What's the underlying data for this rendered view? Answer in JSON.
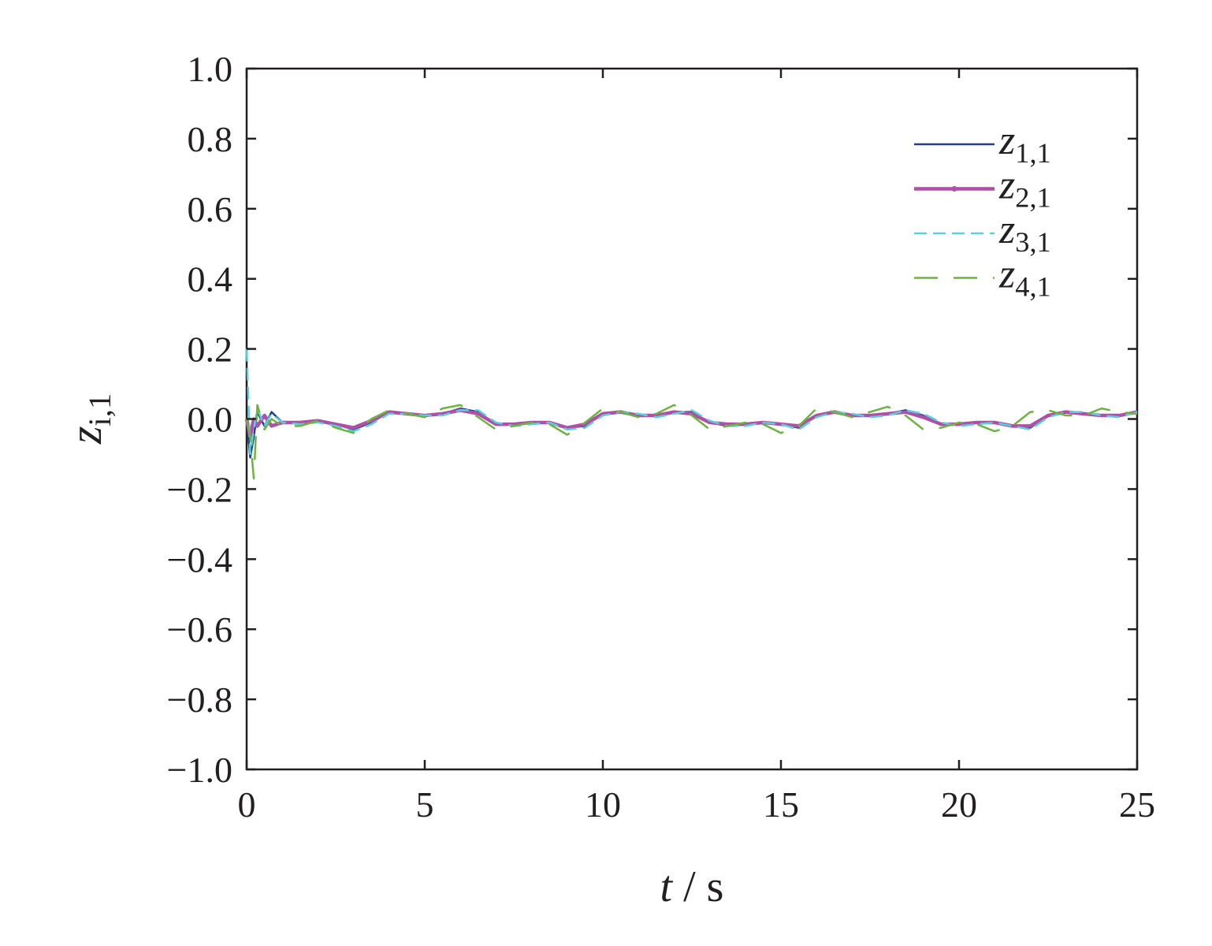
{
  "chart_data": {
    "type": "line",
    "x_label": "t / s",
    "y_label": "zi,1",
    "xlim": [
      0,
      25
    ],
    "ylim": [
      -1,
      1
    ],
    "xticks": [
      0,
      5,
      10,
      15,
      20,
      25
    ],
    "yticks": [
      {
        "value": -1,
        "label": "−1.0"
      },
      {
        "value": -0.8,
        "label": "−0.8"
      },
      {
        "value": -0.6,
        "label": "−0.6"
      },
      {
        "value": -0.4,
        "label": "−0.4"
      },
      {
        "value": -0.2,
        "label": "−0.2"
      },
      {
        "value": 0,
        "label": "0.0"
      },
      {
        "value": 0.2,
        "label": "0.2"
      },
      {
        "value": 0.4,
        "label": "0.4"
      },
      {
        "value": 0.6,
        "label": "0.6"
      },
      {
        "value": 0.8,
        "label": "0.8"
      },
      {
        "value": 1,
        "label": "1.0"
      }
    ],
    "legend": "upper right",
    "x": [
      0,
      0.1,
      0.2,
      0.3,
      0.5,
      0.7,
      1,
      1.5,
      2,
      2.5,
      3,
      3.5,
      4,
      4.5,
      5,
      5.5,
      6,
      6.5,
      7,
      7.5,
      8,
      8.5,
      9,
      9.5,
      10,
      10.5,
      11,
      11.5,
      12,
      12.5,
      13,
      13.5,
      14,
      14.5,
      15,
      15.5,
      16,
      16.5,
      17,
      17.5,
      18,
      18.5,
      19,
      19.5,
      20,
      20.5,
      21,
      21.5,
      22,
      22.5,
      23,
      23.5,
      24,
      24.5,
      25
    ],
    "series": [
      {
        "name": "z1,1",
        "color": "#1f3f8f",
        "dash": "solid",
        "values": [
          0,
          -0.11,
          -0.05,
          0.02,
          -0.02,
          0.02,
          -0.01,
          -0.01,
          -0.005,
          -0.015,
          -0.03,
          -0.01,
          0.02,
          0.015,
          0.01,
          0.015,
          0.03,
          0.02,
          -0.015,
          -0.015,
          -0.01,
          -0.01,
          -0.025,
          -0.02,
          0.015,
          0.02,
          0.01,
          0.01,
          0.02,
          0.02,
          -0.01,
          -0.02,
          -0.015,
          -0.01,
          -0.015,
          -0.025,
          0.01,
          0.02,
          0.01,
          0.01,
          0.015,
          0.025,
          0.01,
          -0.015,
          -0.015,
          -0.01,
          -0.01,
          -0.02,
          -0.025,
          0.01,
          0.02,
          0.015,
          0.01,
          0.01,
          0.02
        ]
      },
      {
        "name": "z2,1",
        "color": "#b04fa8",
        "dash": "solid",
        "values": [
          0,
          -0.05,
          0,
          -0.02,
          0.01,
          -0.02,
          -0.01,
          -0.01,
          -0.005,
          -0.015,
          -0.025,
          -0.005,
          0.02,
          0.015,
          0.01,
          0.015,
          0.025,
          0.015,
          -0.015,
          -0.015,
          -0.01,
          -0.01,
          -0.025,
          -0.015,
          0.015,
          0.02,
          0.01,
          0.01,
          0.02,
          0.015,
          -0.01,
          -0.015,
          -0.015,
          -0.01,
          -0.015,
          -0.02,
          0.01,
          0.02,
          0.01,
          0.01,
          0.015,
          0.02,
          0.005,
          -0.015,
          -0.015,
          -0.01,
          -0.01,
          -0.02,
          -0.02,
          0.01,
          0.02,
          0.015,
          0.01,
          0.01,
          0.02
        ]
      },
      {
        "name": "z3,1",
        "color": "#5ccfd8",
        "dash": "dashed",
        "values": [
          0.2,
          -0.1,
          -0.03,
          0.03,
          -0.02,
          0.015,
          -0.01,
          -0.015,
          -0.01,
          -0.02,
          -0.035,
          -0.015,
          0.015,
          0.015,
          0.01,
          0.01,
          0.025,
          0.025,
          -0.01,
          -0.02,
          -0.015,
          -0.01,
          -0.03,
          -0.025,
          0.01,
          0.02,
          0.015,
          0.005,
          0.015,
          0.025,
          -0.005,
          -0.02,
          -0.02,
          -0.01,
          -0.015,
          -0.03,
          0.005,
          0.02,
          0.015,
          0.005,
          0.01,
          0.025,
          0.015,
          -0.01,
          -0.02,
          -0.015,
          -0.01,
          -0.02,
          -0.03,
          0.005,
          0.02,
          0.02,
          0.01,
          0.005,
          0.02
        ]
      },
      {
        "name": "z4,1",
        "color": "#6db33f",
        "dash": "longdash",
        "values": [
          0,
          -0.05,
          -0.17,
          0.04,
          -0.03,
          0,
          -0.02,
          -0.02,
          -0.005,
          -0.025,
          -0.04,
          0,
          0.025,
          0.015,
          0.005,
          0.03,
          0.04,
          0.005,
          -0.03,
          -0.02,
          -0.01,
          -0.015,
          -0.045,
          -0.01,
          0.03,
          0.02,
          0.005,
          0.015,
          0.04,
          0.01,
          -0.03,
          -0.02,
          -0.01,
          -0.015,
          -0.04,
          -0.02,
          0.03,
          0.02,
          0.005,
          0.02,
          0.035,
          0.01,
          -0.03,
          -0.025,
          -0.01,
          -0.015,
          -0.035,
          -0.02,
          0.02,
          0.025,
          0.01,
          0.01,
          0.03,
          0.02,
          0.015
        ]
      }
    ]
  }
}
